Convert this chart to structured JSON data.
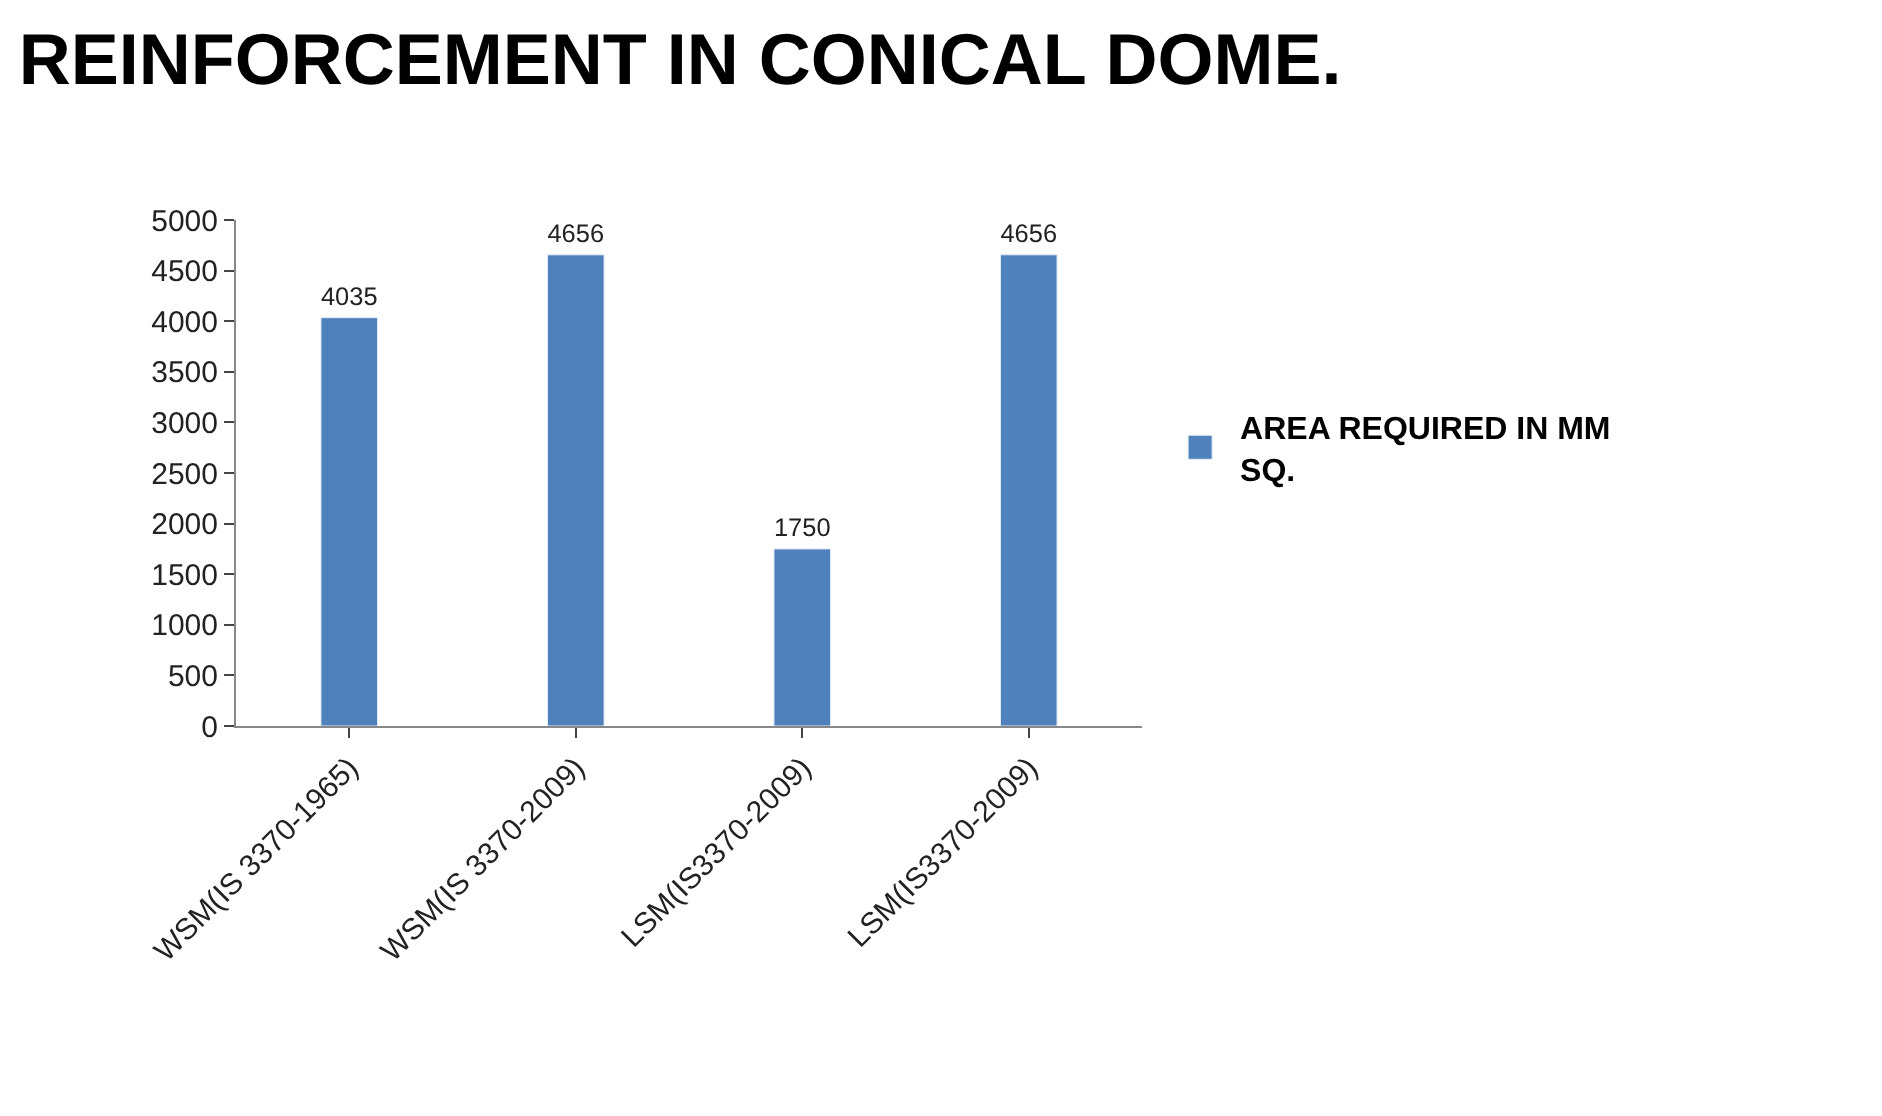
{
  "chart_data": {
    "type": "bar",
    "title": "REINFORCEMENT IN CONICAL DOME.",
    "categories": [
      "WSM(IS 3370-1965)",
      "WSM(IS 3370-2009)",
      "LSM(IS3370-2009)",
      "LSM(IS3370-2009)"
    ],
    "series": [
      {
        "name": "AREA REQUIRED IN MM SQ.",
        "color": "#4f81bd",
        "values": [
          4035,
          4656,
          1750,
          4656
        ]
      }
    ],
    "ylim": [
      0,
      5000
    ],
    "yticks": [
      0,
      500,
      1000,
      1500,
      2000,
      2500,
      3000,
      3500,
      4000,
      4500,
      5000
    ],
    "data_labels": true,
    "legend": "right"
  }
}
